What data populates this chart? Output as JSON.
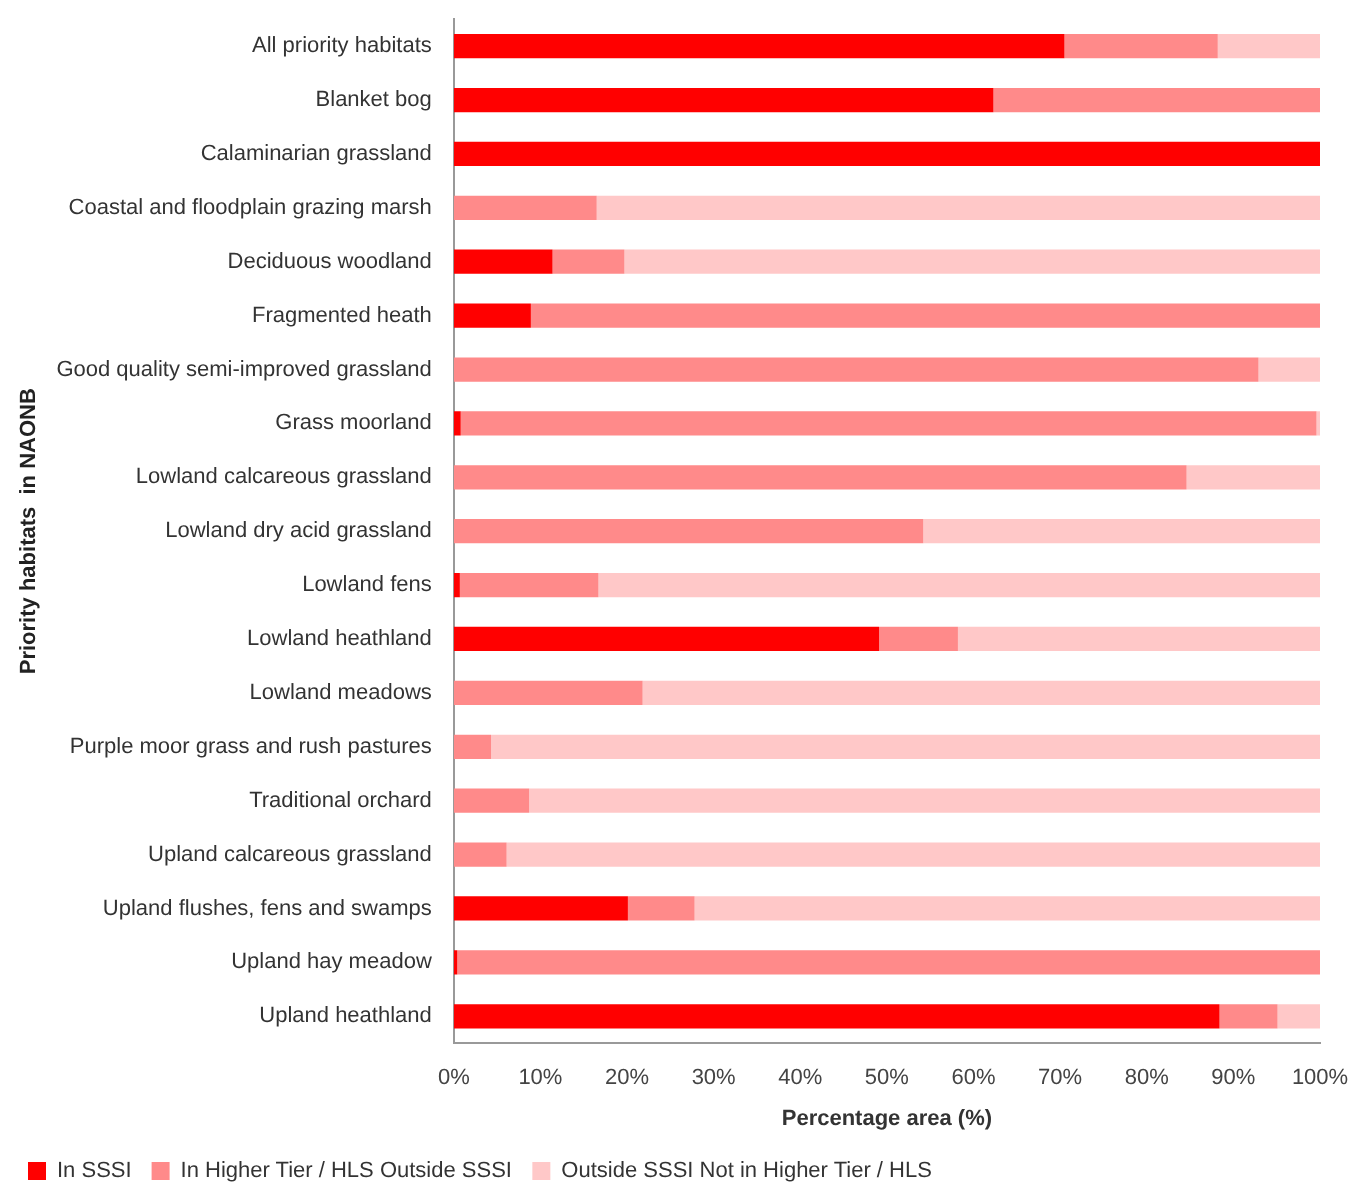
{
  "chart_data": {
    "type": "bar",
    "orientation": "horizontal",
    "stacked": true,
    "xlabel": "Percentage area (%)",
    "ylabel": "Priority habitats  in NAONB",
    "categories": [
      "All priority habitats",
      "Blanket bog",
      "Calaminarian grassland",
      "Coastal and floodplain grazing marsh",
      "Deciduous woodland",
      "Fragmented heath",
      "Good quality semi-improved grassland",
      "Grass moorland",
      "Lowland calcareous grassland",
      "Lowland dry acid grassland",
      "Lowland fens",
      "Lowland heathland",
      "Lowland meadows",
      "Purple moor grass and rush pastures",
      "Traditional orchard",
      "Upland calcareous grassland",
      "Upland flushes, fens and swamps",
      "Upland hay meadow",
      "Upland heathland"
    ],
    "series": [
      {
        "name": "In SSSI",
        "color": "#ff0000",
        "values": [
          70.5,
          62.3,
          100,
          0,
          11.4,
          8.9,
          0,
          0.8,
          0,
          0,
          0.7,
          49.1,
          0,
          0,
          0,
          0,
          20.1,
          0.4,
          88.4
        ]
      },
      {
        "name": "In Higher Tier / HLS Outside SSSI",
        "color": "#ff8a8a",
        "values": [
          17.7,
          37.7,
          0,
          16.5,
          8.3,
          91.1,
          92.9,
          98.8,
          84.6,
          54.2,
          16,
          9.1,
          21.8,
          4.3,
          8.7,
          6.1,
          7.7,
          99.6,
          6.7
        ]
      },
      {
        "name": "Outside SSSI Not in Higher Tier / HLS",
        "color": "#ffc8c8",
        "values": [
          11.8,
          0,
          0,
          83.5,
          80.3,
          0,
          7.1,
          0.4,
          15.4,
          45.8,
          83.3,
          41.8,
          78.2,
          95.7,
          91.3,
          93.9,
          72.2,
          0,
          4.9
        ]
      }
    ],
    "xlim": [
      0,
      100
    ],
    "xticks": [
      {
        "value": 0,
        "label": "0%"
      },
      {
        "value": 10,
        "label": "10%"
      },
      {
        "value": 20,
        "label": "20%"
      },
      {
        "value": 30,
        "label": "30%"
      },
      {
        "value": 40,
        "label": "40%"
      },
      {
        "value": 50,
        "label": "50%"
      },
      {
        "value": 60,
        "label": "60%"
      },
      {
        "value": 70,
        "label": "70%"
      },
      {
        "value": 80,
        "label": "80%"
      },
      {
        "value": 90,
        "label": "90%"
      },
      {
        "value": 100,
        "label": "100%"
      }
    ],
    "grid": false,
    "legend": "bottom left"
  }
}
